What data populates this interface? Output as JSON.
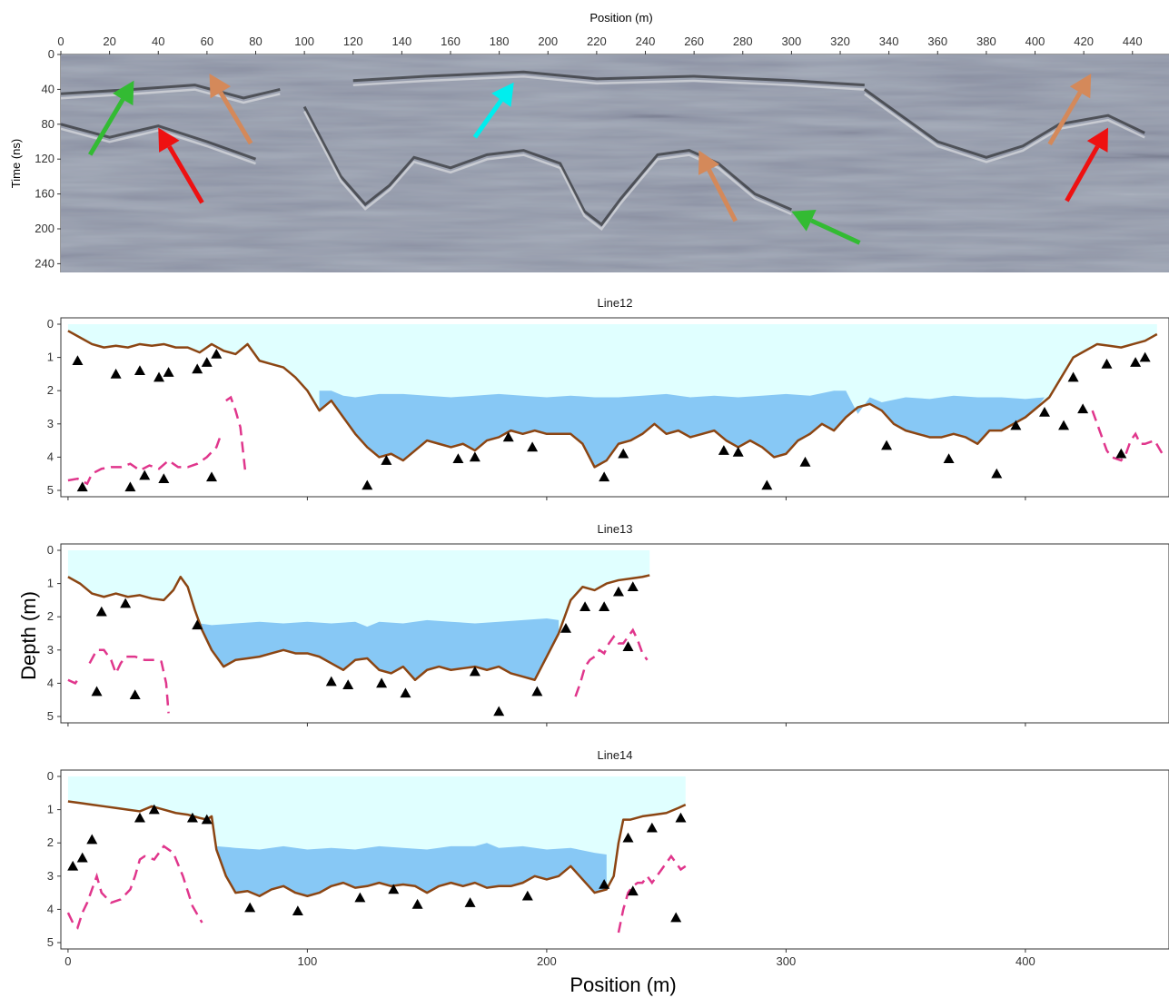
{
  "colors": {
    "bed": "#8b4513",
    "ice_fill": "#e0ffff",
    "water_fill": "#87c8f5",
    "dashed": "#e0368c",
    "marker": "#000000",
    "gpr_base": "#6f7a8c",
    "arrow_green": "#33bb33",
    "arrow_red": "#ee1111",
    "arrow_tan": "#d4895a",
    "arrow_cyan": "#00eeee"
  },
  "chart_data": [
    {
      "type": "heatmap",
      "title": "",
      "xlabel": "Position (m)",
      "ylabel": "Time (ns)",
      "xlim": [
        0,
        455
      ],
      "ylim": [
        250,
        0
      ],
      "xticks": [
        0,
        20,
        40,
        60,
        80,
        100,
        120,
        140,
        160,
        180,
        200,
        220,
        240,
        260,
        280,
        300,
        320,
        340,
        360,
        380,
        400,
        420,
        440
      ],
      "yticks": [
        0,
        40,
        80,
        120,
        160,
        200,
        240
      ],
      "annotations": [
        {
          "color": "green",
          "from": [
            12,
            115
          ],
          "to": [
            30,
            30
          ]
        },
        {
          "color": "red",
          "from": [
            58,
            170
          ],
          "to": [
            40,
            84
          ]
        },
        {
          "color": "tan",
          "from": [
            78,
            102
          ],
          "to": [
            61,
            22
          ]
        },
        {
          "color": "cyan",
          "from": [
            170,
            95
          ],
          "to": [
            186,
            32
          ]
        },
        {
          "color": "tan",
          "from": [
            277,
            191
          ],
          "to": [
            262,
            110
          ]
        },
        {
          "color": "green",
          "from": [
            328,
            216
          ],
          "to": [
            300,
            180
          ]
        },
        {
          "color": "tan",
          "from": [
            406,
            103
          ],
          "to": [
            423,
            22
          ]
        },
        {
          "color": "red",
          "from": [
            413,
            168
          ],
          "to": [
            430,
            84
          ]
        }
      ]
    },
    {
      "type": "area",
      "title": "Line12",
      "xlabel": "Position (m)",
      "ylabel": "Depth (m)",
      "xlim": [
        -3,
        460
      ],
      "ylim": [
        5,
        0
      ],
      "grid": false,
      "ice_surface": 0,
      "bed": {
        "x": [
          0,
          5,
          10,
          15,
          20,
          25,
          30,
          35,
          40,
          45,
          50,
          55,
          60,
          65,
          70,
          75,
          80,
          85,
          90,
          95,
          100,
          105,
          110,
          115,
          120,
          125,
          130,
          135,
          140,
          145,
          150,
          155,
          160,
          165,
          170,
          175,
          180,
          185,
          190,
          195,
          200,
          205,
          210,
          215,
          220,
          225,
          230,
          235,
          240,
          245,
          250,
          255,
          260,
          265,
          270,
          275,
          280,
          285,
          290,
          295,
          300,
          305,
          310,
          315,
          320,
          325,
          330,
          335,
          340,
          345,
          350,
          355,
          360,
          365,
          370,
          375,
          380,
          385,
          390,
          395,
          400,
          405,
          410,
          415,
          420,
          425,
          430,
          435,
          440,
          445,
          450,
          455
        ],
        "y": [
          0.2,
          0.4,
          0.6,
          0.7,
          0.65,
          0.7,
          0.6,
          0.65,
          0.6,
          0.7,
          0.7,
          0.85,
          0.6,
          0.8,
          0.9,
          0.6,
          1.1,
          1.2,
          1.3,
          1.6,
          2.0,
          2.6,
          2.3,
          2.8,
          3.3,
          3.7,
          4.0,
          3.9,
          4.1,
          3.8,
          3.5,
          3.6,
          3.7,
          3.6,
          3.8,
          3.5,
          3.4,
          3.2,
          3.3,
          3.2,
          3.3,
          3.3,
          3.3,
          3.6,
          4.3,
          4.1,
          3.6,
          3.5,
          3.3,
          3.0,
          3.3,
          3.2,
          3.4,
          3.3,
          3.2,
          3.5,
          3.7,
          3.5,
          3.7,
          4.0,
          3.9,
          3.5,
          3.3,
          3.0,
          3.2,
          2.8,
          2.5,
          2.4,
          2.6,
          3.0,
          3.2,
          3.3,
          3.4,
          3.4,
          3.3,
          3.4,
          3.6,
          3.2,
          3.2,
          3.0,
          2.8,
          2.5,
          2.2,
          1.6,
          1.0,
          0.8,
          0.6,
          0.65,
          0.7,
          0.6,
          0.5,
          0.3
        ]
      },
      "water_top": {
        "x": [
          105,
          110,
          115,
          120,
          130,
          140,
          150,
          160,
          170,
          180,
          190,
          200,
          210,
          220,
          230,
          240,
          250,
          260,
          270,
          280,
          290,
          300,
          310,
          320,
          325,
          330,
          335,
          340,
          350,
          360,
          370,
          380,
          390,
          400,
          408
        ],
        "y": [
          2.0,
          2.0,
          2.15,
          2.2,
          2.1,
          2.1,
          2.15,
          2.2,
          2.15,
          2.1,
          2.15,
          2.2,
          2.15,
          2.2,
          2.2,
          2.15,
          2.1,
          2.2,
          2.15,
          2.2,
          2.15,
          2.1,
          2.15,
          2.0,
          2.0,
          2.7,
          2.2,
          2.35,
          2.2,
          2.25,
          2.15,
          2.2,
          2.2,
          2.25,
          2.2
        ]
      },
      "markers": {
        "x": [
          4,
          20,
          30,
          38,
          42,
          54,
          58,
          62,
          6,
          26,
          32,
          40,
          60,
          125,
          133,
          163,
          170,
          184,
          194,
          224,
          232,
          274,
          280,
          292,
          308,
          342,
          368,
          388,
          396,
          408,
          416,
          420,
          424,
          434,
          440,
          446,
          450
        ],
        "y": [
          1.1,
          1.5,
          1.4,
          1.6,
          1.45,
          1.35,
          1.15,
          0.9,
          4.9,
          4.9,
          4.55,
          4.65,
          4.6,
          4.85,
          4.1,
          4.05,
          4.0,
          3.4,
          3.7,
          4.6,
          3.9,
          3.8,
          3.85,
          4.85,
          4.15,
          3.65,
          4.05,
          4.5,
          3.05,
          2.65,
          3.05,
          1.6,
          2.55,
          1.2,
          3.9,
          1.15,
          1.0
        ]
      },
      "dashed_segments": [
        {
          "x": [
            0,
            4,
            8,
            10,
            14,
            18,
            22,
            26,
            30,
            34,
            38,
            42,
            46,
            50,
            54,
            58,
            62,
            64
          ],
          "y": [
            4.7,
            4.65,
            4.8,
            4.5,
            4.35,
            4.3,
            4.3,
            4.2,
            4.4,
            4.25,
            4.35,
            4.1,
            4.3,
            4.3,
            4.2,
            4.0,
            3.7,
            3.3
          ]
        },
        {
          "x": [
            66,
            68,
            70,
            72,
            74
          ],
          "y": [
            2.3,
            2.2,
            2.6,
            3.1,
            4.4
          ]
        },
        {
          "x": [
            428,
            430,
            432,
            434,
            436,
            440,
            442,
            444,
            446,
            448,
            450,
            454,
            458
          ],
          "y": [
            2.6,
            3.0,
            3.4,
            3.8,
            4.0,
            4.1,
            3.9,
            3.5,
            3.3,
            3.6,
            3.6,
            3.5,
            4.0
          ]
        }
      ],
      "xticks": [
        0,
        100,
        200,
        300,
        400
      ],
      "yticks": [
        0,
        1,
        2,
        3,
        4,
        5
      ]
    },
    {
      "type": "area",
      "title": "Line13",
      "xlabel": "Position (m)",
      "ylabel": "Depth (m)",
      "xlim": [
        -3,
        460
      ],
      "ylim": [
        5,
        0
      ],
      "grid": false,
      "ice_surface": 0,
      "bed": {
        "x": [
          0,
          5,
          10,
          15,
          20,
          25,
          30,
          35,
          40,
          44,
          47,
          50,
          53,
          56,
          60,
          65,
          70,
          75,
          80,
          85,
          90,
          95,
          100,
          105,
          110,
          115,
          120,
          125,
          130,
          135,
          140,
          145,
          150,
          155,
          160,
          165,
          170,
          175,
          180,
          185,
          190,
          195,
          200,
          205,
          210,
          215,
          220,
          225,
          230,
          235,
          240,
          243
        ],
        "y": [
          0.8,
          1.0,
          1.3,
          1.4,
          1.3,
          1.4,
          1.35,
          1.45,
          1.5,
          1.2,
          0.8,
          1.1,
          1.8,
          2.4,
          3.0,
          3.5,
          3.3,
          3.25,
          3.2,
          3.1,
          3.0,
          3.1,
          3.1,
          3.2,
          3.4,
          3.6,
          3.3,
          3.25,
          3.6,
          3.7,
          3.5,
          3.9,
          3.6,
          3.5,
          3.6,
          3.55,
          3.5,
          3.6,
          3.5,
          3.7,
          3.8,
          3.9,
          3.2,
          2.5,
          1.5,
          1.1,
          1.2,
          1.0,
          0.9,
          0.85,
          0.8,
          0.75
        ]
      },
      "water_top": {
        "x": [
          55,
          60,
          70,
          80,
          90,
          100,
          110,
          120,
          125,
          130,
          140,
          150,
          160,
          170,
          180,
          190,
          200,
          205
        ],
        "y": [
          2.2,
          2.25,
          2.2,
          2.15,
          2.2,
          2.15,
          2.2,
          2.15,
          2.3,
          2.15,
          2.2,
          2.1,
          2.15,
          2.2,
          2.15,
          2.1,
          2.05,
          2.1
        ]
      },
      "markers": {
        "x": [
          14,
          24,
          12,
          28,
          54,
          110,
          117,
          131,
          141,
          170,
          180,
          196,
          208,
          216,
          224,
          230,
          236,
          234
        ],
        "y": [
          1.85,
          1.6,
          4.25,
          4.35,
          2.25,
          3.95,
          4.05,
          4.0,
          4.3,
          3.65,
          4.85,
          4.25,
          2.35,
          1.7,
          1.7,
          1.25,
          1.1,
          2.9
        ]
      },
      "dashed_segments": [
        {
          "x": [
            0,
            3,
            5
          ],
          "y": [
            3.9,
            4.0,
            3.8
          ]
        },
        {
          "x": [
            9,
            12,
            15,
            18,
            20,
            22,
            24,
            28,
            32,
            36,
            39,
            41,
            42
          ],
          "y": [
            3.4,
            3.0,
            3.0,
            3.3,
            3.7,
            3.4,
            3.2,
            3.2,
            3.3,
            3.3,
            3.35,
            4.0,
            4.9
          ]
        },
        {
          "x": [
            212,
            214,
            216,
            218,
            220,
            222,
            224,
            226,
            228,
            230,
            232,
            234,
            236,
            238,
            240,
            242
          ],
          "y": [
            4.4,
            4.0,
            3.5,
            3.3,
            3.2,
            3.0,
            3.1,
            2.8,
            2.6,
            2.8,
            2.8,
            2.6,
            2.4,
            2.7,
            3.1,
            3.3
          ]
        }
      ],
      "xticks": [
        0,
        100,
        200,
        300,
        400
      ],
      "yticks": [
        0,
        1,
        2,
        3,
        4,
        5
      ]
    },
    {
      "type": "area",
      "title": "Line14",
      "xlabel": "Position (m)",
      "ylabel": "Depth (m)",
      "xlim": [
        -3,
        460
      ],
      "ylim": [
        5,
        0
      ],
      "grid": false,
      "ice_surface": 0,
      "bed": {
        "x": [
          0,
          5,
          10,
          15,
          20,
          25,
          30,
          35,
          40,
          45,
          50,
          55,
          58,
          60,
          62,
          64,
          66,
          70,
          75,
          80,
          85,
          90,
          95,
          100,
          105,
          110,
          115,
          120,
          125,
          130,
          135,
          140,
          145,
          150,
          155,
          160,
          165,
          170,
          175,
          180,
          185,
          190,
          195,
          200,
          205,
          210,
          215,
          220,
          225,
          228,
          230,
          232,
          235,
          240,
          245,
          250,
          255,
          258
        ],
        "y": [
          0.75,
          0.8,
          0.85,
          0.9,
          0.95,
          1.0,
          1.05,
          0.9,
          1.0,
          1.1,
          1.15,
          1.25,
          1.3,
          1.2,
          2.2,
          2.6,
          3.0,
          3.5,
          3.45,
          3.6,
          3.4,
          3.3,
          3.5,
          3.6,
          3.5,
          3.3,
          3.2,
          3.35,
          3.3,
          3.2,
          3.3,
          3.25,
          3.3,
          3.5,
          3.3,
          3.2,
          3.3,
          3.2,
          3.35,
          3.3,
          3.3,
          3.2,
          3.0,
          3.1,
          3.0,
          2.7,
          3.1,
          3.5,
          3.4,
          3.0,
          2.0,
          1.3,
          1.3,
          1.2,
          1.15,
          1.1,
          0.95,
          0.85
        ]
      },
      "water_top": {
        "x": [
          62,
          70,
          80,
          90,
          100,
          110,
          120,
          130,
          140,
          150,
          160,
          170,
          175,
          180,
          190,
          200,
          210,
          220,
          225
        ],
        "y": [
          2.1,
          2.15,
          2.2,
          2.1,
          2.2,
          2.15,
          2.2,
          2.1,
          2.15,
          2.2,
          2.1,
          2.1,
          2.0,
          2.15,
          2.1,
          2.2,
          2.15,
          2.3,
          2.35
        ]
      },
      "markers": {
        "x": [
          2,
          6,
          10,
          30,
          36,
          52,
          58,
          76,
          96,
          122,
          136,
          146,
          168,
          192,
          224,
          234,
          236,
          244,
          254,
          256
        ],
        "y": [
          2.7,
          2.45,
          1.9,
          1.25,
          1.0,
          1.25,
          1.3,
          3.95,
          4.05,
          3.65,
          3.4,
          3.85,
          3.8,
          3.6,
          3.25,
          1.85,
          3.45,
          1.55,
          4.25,
          1.25
        ]
      },
      "dashed_segments": [
        {
          "x": [
            0,
            2,
            4,
            6,
            8,
            10,
            12,
            14,
            18,
            22,
            26,
            28,
            30,
            32,
            36,
            40,
            44,
            48,
            52,
            56
          ],
          "y": [
            4.1,
            4.4,
            4.55,
            4.1,
            3.8,
            3.4,
            3.0,
            3.5,
            3.8,
            3.7,
            3.4,
            3.0,
            2.5,
            2.4,
            2.5,
            2.1,
            2.3,
            3.0,
            3.9,
            4.4
          ]
        },
        {
          "x": [
            230,
            232,
            234,
            236,
            238,
            240,
            242,
            244,
            248,
            252,
            256,
            258
          ],
          "y": [
            4.7,
            4.0,
            3.5,
            3.3,
            3.2,
            3.2,
            3.0,
            3.2,
            2.8,
            2.4,
            2.8,
            2.7
          ]
        }
      ],
      "xticks": [
        0,
        100,
        200,
        300,
        400
      ],
      "yticks": [
        0,
        1,
        2,
        3,
        4,
        5
      ]
    }
  ],
  "figure": {
    "shared_xlabel": "Position (m)",
    "shared_ylabel": "Depth (m)"
  }
}
